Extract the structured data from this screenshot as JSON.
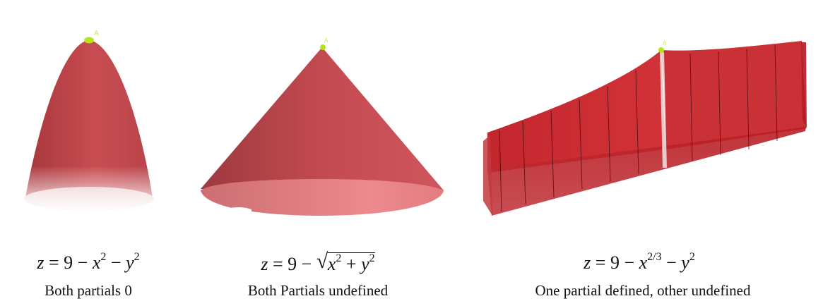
{
  "panels": [
    {
      "id": "paraboloid",
      "surface_color": "#c9484d",
      "point_label": "A",
      "formula": {
        "lhs": "z",
        "eq": "=",
        "c": "9",
        "op1": "−",
        "t1": "x",
        "t1_exp": "2",
        "op2": "−",
        "t2": "y",
        "t2_exp": "2"
      },
      "caption": "Both partials 0"
    },
    {
      "id": "cone",
      "surface_color": "#cc4c52",
      "point_label": "A",
      "formula": {
        "lhs": "z",
        "eq": "=",
        "c": "9",
        "op1": "−",
        "rad_a": "x",
        "rad_a_exp": "2",
        "rad_op": "+",
        "rad_b": "y",
        "rad_b_exp": "2"
      },
      "caption": "Both Partials undefined"
    },
    {
      "id": "cusp-surface",
      "surface_color": "#c81e24",
      "point_label": "A",
      "formula": {
        "lhs": "z",
        "eq": "=",
        "c": "9",
        "op1": "−",
        "t1": "x",
        "t1_exp": "2/3",
        "op2": "−",
        "t2": "y",
        "t2_exp": "2"
      },
      "caption": "One partial defined, other undefined"
    }
  ],
  "colors": {
    "point": "#b6e61a",
    "point_label": "#c8ef40",
    "mesh_line": "#3a0a0c"
  }
}
